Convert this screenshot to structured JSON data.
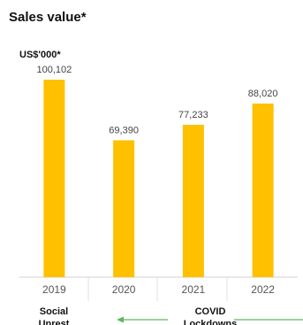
{
  "chart_data": {
    "type": "bar",
    "title": "Sales value*",
    "unit_label": "US$'000*",
    "categories": [
      "2019",
      "2020",
      "2021",
      "2022"
    ],
    "values": [
      100102,
      69390,
      77233,
      88020
    ],
    "value_labels": [
      "100,102",
      "69,390",
      "77,233",
      "88,020"
    ],
    "color": "#ffc000",
    "annotations": [
      {
        "lines": [
          "Social",
          "Unrest"
        ]
      },
      {
        "lines": [
          "COVID",
          "Lockdowns"
        ]
      }
    ]
  }
}
